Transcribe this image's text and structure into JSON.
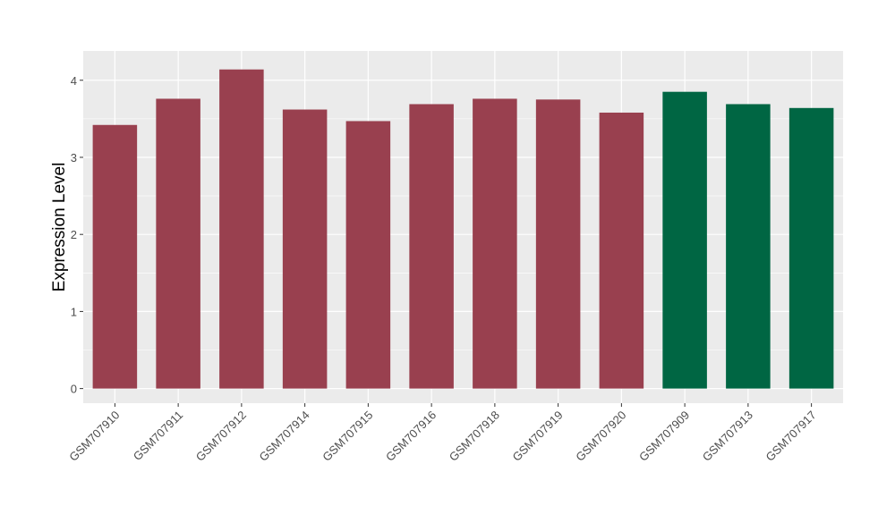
{
  "chart_data": {
    "type": "bar",
    "title": "",
    "xlabel": "",
    "ylabel": "Expression Level",
    "ylim": [
      -0.19,
      4.38
    ],
    "yticks": [
      0,
      1,
      2,
      3,
      4
    ],
    "grid": true,
    "categories": [
      "GSM707910",
      "GSM707911",
      "GSM707912",
      "GSM707914",
      "GSM707915",
      "GSM707916",
      "GSM707918",
      "GSM707919",
      "GSM707920",
      "GSM707909",
      "GSM707913",
      "GSM707917"
    ],
    "values": [
      3.42,
      3.76,
      4.14,
      3.62,
      3.47,
      3.69,
      3.76,
      3.75,
      3.58,
      3.85,
      3.69,
      3.64
    ],
    "groups": [
      "a",
      "a",
      "a",
      "a",
      "a",
      "a",
      "a",
      "a",
      "a",
      "b",
      "b",
      "b"
    ],
    "colors": {
      "a": "#99404f",
      "b": "#006643",
      "panel": "#ebebeb",
      "grid": "#ffffff"
    }
  }
}
